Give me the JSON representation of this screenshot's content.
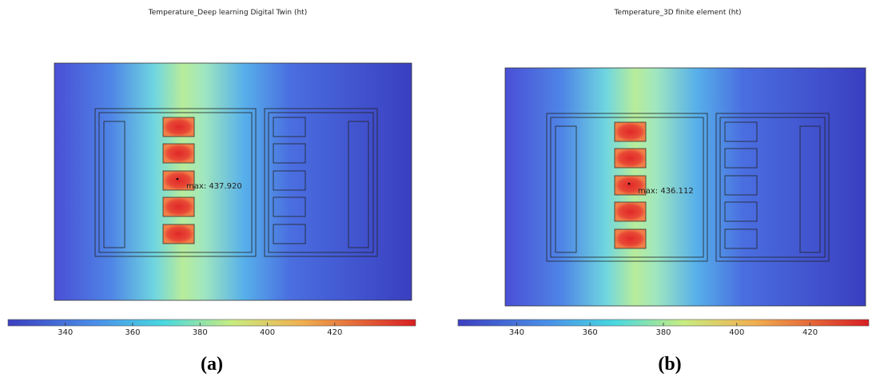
{
  "panels": [
    {
      "title": "Temperature_Deep learning Digital Twin (ht)",
      "max_label": "max: 437.920",
      "colorbar": {
        "range": [
          323,
          444
        ],
        "ticks": [
          340,
          360,
          380,
          400,
          420
        ]
      },
      "label": "(a)"
    },
    {
      "title": "Temperature_3D finite element (ht)",
      "max_label": "max: 436.112",
      "colorbar": {
        "range": [
          324,
          436
        ],
        "ticks": [
          340,
          360,
          380,
          400,
          420
        ]
      },
      "label": "(b)"
    }
  ]
}
